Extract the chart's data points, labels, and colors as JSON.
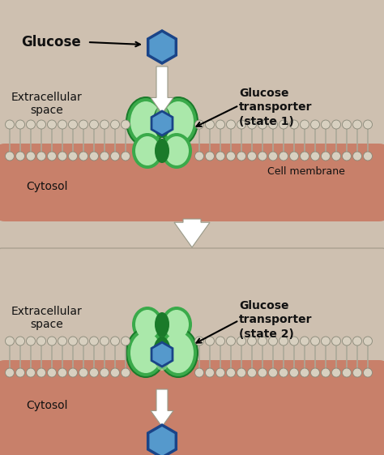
{
  "bg_color": "#cec0b0",
  "cytosol_color": "#c8806a",
  "membrane_head_color": "#d8d0c0",
  "membrane_head_edge": "#888878",
  "membrane_stick_color": "#aaa898",
  "transporter_dark": "#1a7a2a",
  "transporter_mid": "#3aaa4a",
  "transporter_light": "#aae8aa",
  "glucose_face": "#5599cc",
  "glucose_edge": "#1a4488",
  "arrow_face": "#ffffff",
  "arrow_edge": "#999988",
  "text_color": "#111111",
  "label_glucose": "Glucose",
  "label_extracellular": "Extracellular\nspace",
  "label_cytosol": "Cytosol",
  "label_cell_membrane": "Cell membrane",
  "label_transporter1": "Glucose\ntransporter\n(state 1)",
  "label_transporter2": "Glucose\ntransporter\n(state 2)"
}
